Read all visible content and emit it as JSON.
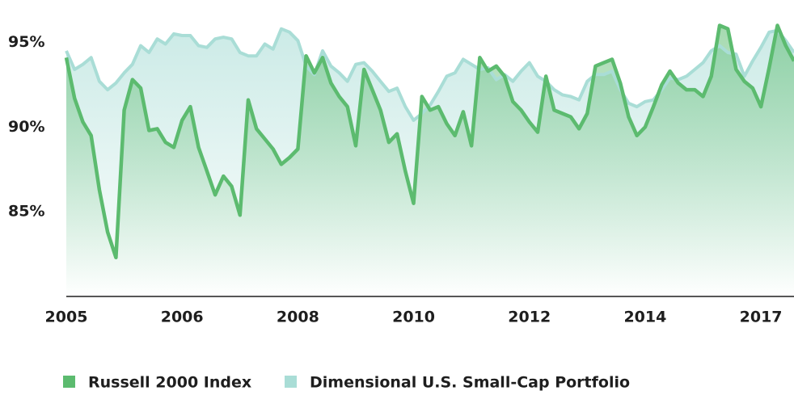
{
  "chart_data": {
    "type": "line",
    "categories": [
      "2005",
      null,
      null,
      null,
      null,
      null,
      null,
      null,
      null,
      null,
      null,
      null,
      null,
      null,
      "2006",
      null,
      null,
      null,
      null,
      null,
      null,
      null,
      null,
      null,
      null,
      null,
      null,
      null,
      "2008",
      null,
      null,
      null,
      null,
      null,
      null,
      null,
      null,
      null,
      null,
      null,
      null,
      null,
      "2010",
      null,
      null,
      null,
      null,
      null,
      null,
      null,
      null,
      null,
      null,
      null,
      null,
      null,
      "2012",
      null,
      null,
      null,
      null,
      null,
      null,
      null,
      null,
      null,
      null,
      null,
      null,
      null,
      "2014",
      null,
      null,
      null,
      null,
      null,
      null,
      null,
      null,
      null,
      null,
      null,
      null,
      null,
      "2017",
      null,
      null,
      null,
      null
    ],
    "series": [
      {
        "name": "Russell 2000 Index",
        "color": "#5cbb6f",
        "values": [
          94.1,
          91.7,
          90.3,
          89.5,
          86.3,
          83.8,
          82.3,
          91.0,
          92.8,
          92.3,
          89.8,
          89.9,
          89.1,
          88.8,
          90.4,
          91.2,
          88.8,
          87.4,
          86.0,
          87.1,
          86.5,
          84.8,
          91.6,
          89.9,
          89.3,
          88.7,
          87.8,
          88.2,
          88.7,
          94.2,
          93.2,
          94.1,
          92.6,
          91.8,
          91.2,
          88.9,
          93.4,
          92.2,
          91.0,
          89.1,
          89.6,
          87.4,
          85.5,
          91.8,
          91.0,
          91.2,
          90.2,
          89.5,
          90.9,
          88.9,
          94.1,
          93.3,
          93.6,
          93.0,
          91.5,
          91.0,
          90.3,
          89.7,
          93.0,
          91.0,
          90.8,
          90.6,
          89.9,
          90.8,
          93.6,
          93.8,
          94.0,
          92.6,
          90.6,
          89.5,
          90.0,
          91.2,
          92.5,
          93.3,
          92.6,
          92.2,
          92.2,
          91.8,
          93.0,
          96.0,
          95.8,
          93.4,
          92.7,
          92.3,
          91.2,
          93.5,
          96.0,
          94.8,
          93.9
        ]
      },
      {
        "name": "Dimensional U.S. Small-Cap Portfolio",
        "color": "#a9ddd6",
        "values": [
          94.5,
          93.4,
          93.7,
          94.1,
          92.7,
          92.2,
          92.6,
          93.2,
          93.7,
          94.8,
          94.4,
          95.2,
          94.9,
          95.5,
          95.4,
          95.4,
          94.8,
          94.7,
          95.2,
          95.3,
          95.2,
          94.4,
          94.2,
          94.2,
          94.9,
          94.6,
          95.8,
          95.6,
          95.1,
          93.6,
          93.1,
          94.5,
          93.6,
          93.2,
          92.7,
          93.7,
          93.8,
          93.3,
          92.7,
          92.1,
          92.3,
          91.2,
          90.4,
          90.8,
          91.3,
          92.1,
          93.0,
          93.2,
          94.0,
          93.7,
          93.4,
          93.5,
          92.8,
          93.1,
          92.7,
          93.3,
          93.8,
          93.0,
          92.7,
          92.2,
          91.9,
          91.8,
          91.6,
          92.7,
          93.1,
          93.1,
          93.3,
          92.2,
          91.4,
          91.2,
          91.5,
          91.6,
          92.2,
          92.9,
          92.8,
          93.0,
          93.4,
          93.8,
          94.5,
          94.8,
          94.4,
          94.3,
          93.0,
          93.9,
          94.7,
          95.6,
          95.7,
          95.1,
          94.4
        ]
      }
    ],
    "ylim": [
      80,
      97.5
    ],
    "yticks": [
      {
        "value": 85,
        "label": "85%"
      },
      {
        "value": 90,
        "label": "90%"
      },
      {
        "value": 95,
        "label": "95%"
      }
    ],
    "grid": false,
    "legend": "bottom"
  }
}
